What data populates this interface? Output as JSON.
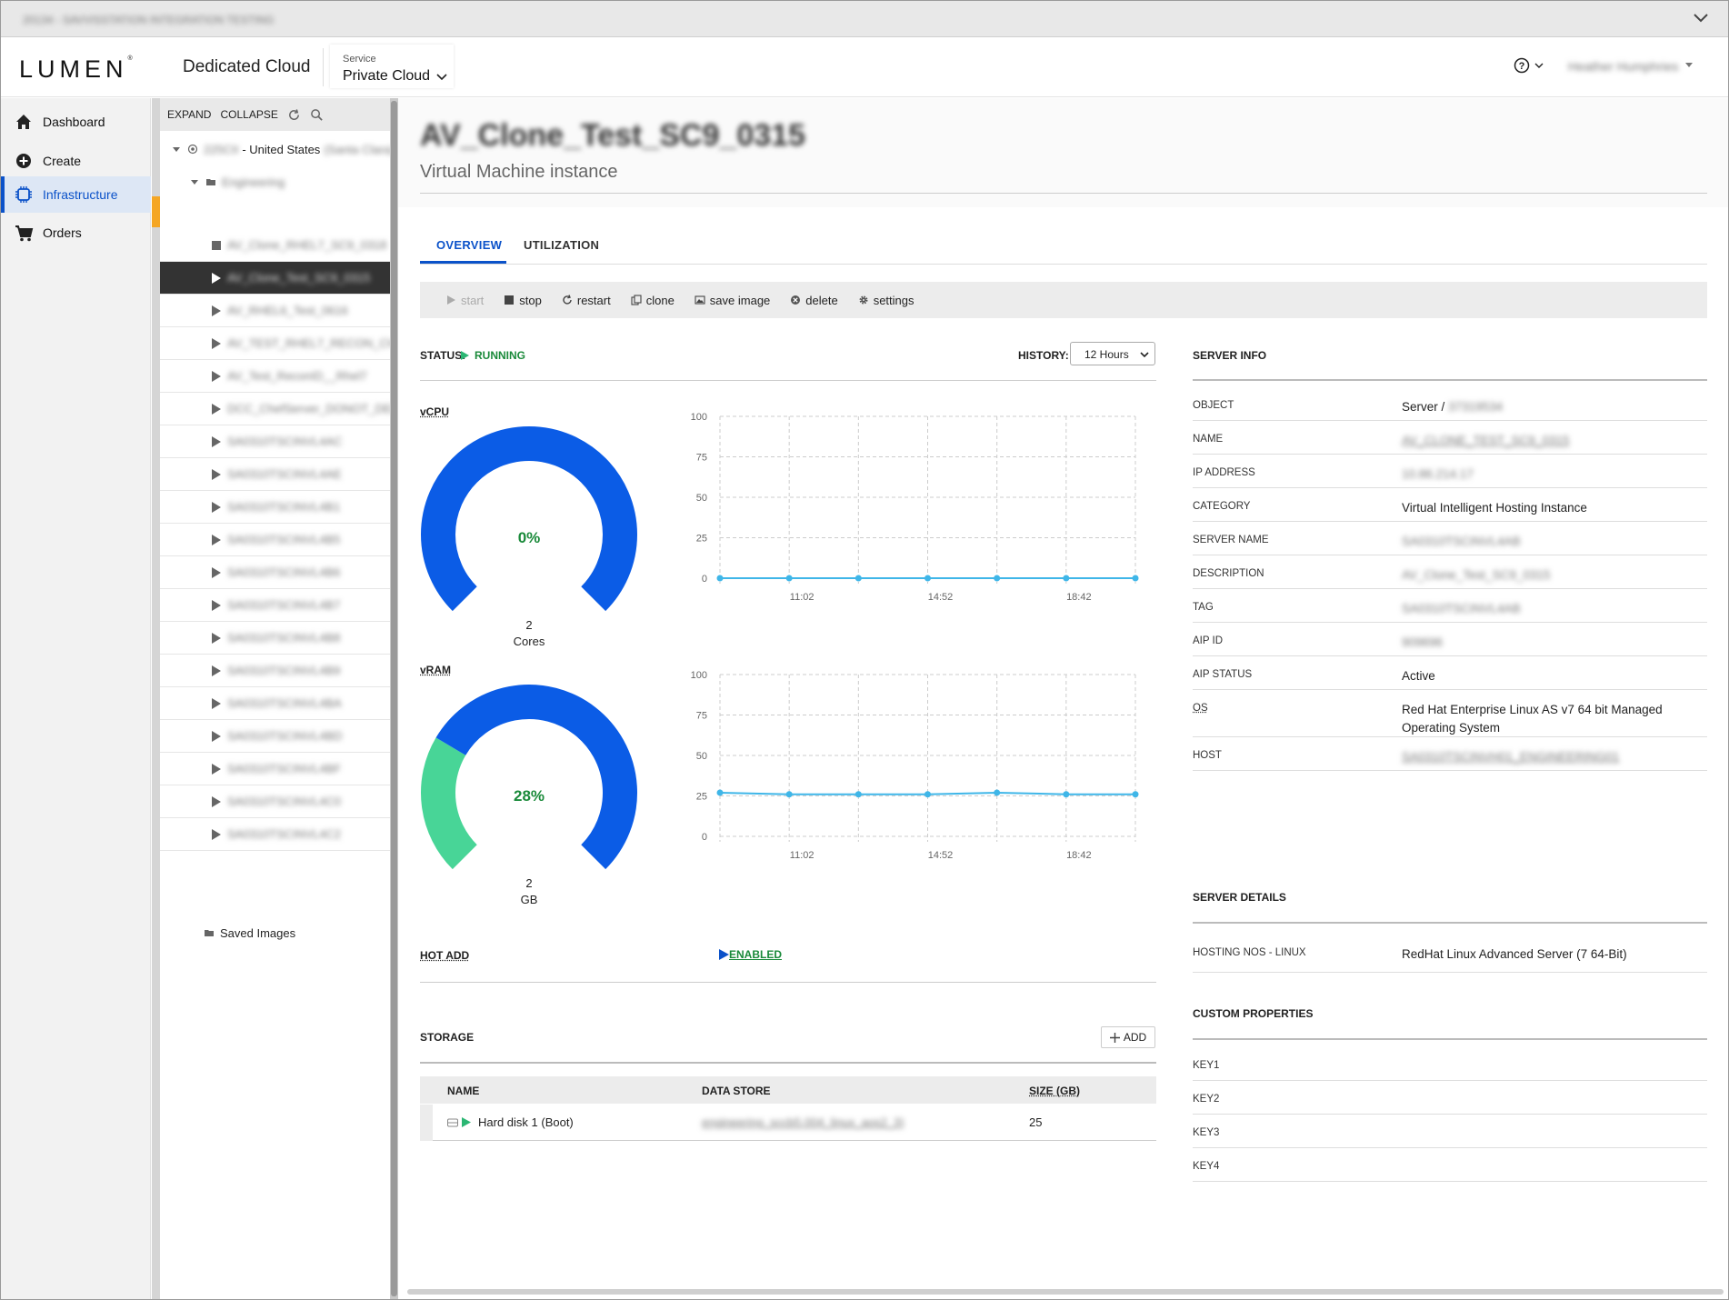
{
  "window": {
    "title": "20134 - SAVVISSTATION INTEGRATION TESTING"
  },
  "header": {
    "logo": "LUMEN",
    "app_title": "Dedicated Cloud",
    "service_label": "Service",
    "service_value": "Private Cloud",
    "user_name": "Heather Humphries"
  },
  "nav": {
    "items": [
      {
        "label": "Dashboard",
        "icon": "home-icon"
      },
      {
        "label": "Create",
        "icon": "plus-circle-icon"
      },
      {
        "label": "Infrastructure",
        "icon": "chip-icon",
        "active": true
      },
      {
        "label": "Orders",
        "icon": "cart-icon"
      }
    ]
  },
  "tree": {
    "expand": "EXPAND",
    "collapse": "COLLAPSE",
    "root_id": "225CII",
    "root_label": "- United States",
    "root_suffix": "(Santa Clara)",
    "group": "Engineering",
    "items": [
      "AV_Clone_RHEL7_SC9_0318",
      "AV_Clone_Test_SC9_0315",
      "AV_RHEL6_Test_0616",
      "AV_TEST_RHEL7_RECON_CHE",
      "AV_Test_ReconID__Rhel7",
      "DCC_ChefServer_DONOT_DEL",
      "SA0310TSCINVL4AC",
      "SA0310TSCINVL4AE",
      "SA0310TSCINVL4B1",
      "SA0310TSCINVL4B5",
      "SA0310TSCINVL4B6",
      "SA0310TSCINVL4B7",
      "SA0310TSCINVL4B8",
      "SA0310TSCINVL4B9",
      "SA0310TSCINVL4BA",
      "SA0310TSCINVL4BD",
      "SA0310TSCINVL4BF",
      "SA0310TSCINVL4C0",
      "SA0310TSCINVL4C2"
    ],
    "saved_images": "Saved Images"
  },
  "vm": {
    "name": "AV_Clone_Test_SC9_0315",
    "subtitle": "Virtual Machine instance"
  },
  "tabs": {
    "overview": "OVERVIEW",
    "utilization": "UTILIZATION"
  },
  "actions": {
    "start": "start",
    "stop": "stop",
    "restart": "restart",
    "clone": "clone",
    "save_image": "save image",
    "delete": "delete",
    "settings": "settings"
  },
  "status": {
    "label": "STATUS:",
    "value": "RUNNING"
  },
  "history": {
    "label": "HISTORY:",
    "value": "12 Hours"
  },
  "vcpu": {
    "label": "vCPU",
    "percent": "0%",
    "count": "2",
    "unit": "Cores",
    "fraction": 0.0
  },
  "vram": {
    "label": "vRAM",
    "percent": "28%",
    "count": "2",
    "unit": "GB",
    "fraction": 0.28
  },
  "chart_data": [
    {
      "type": "line",
      "name": "vcpu-chart",
      "x": [
        "",
        "11:02",
        "",
        "14:52",
        "",
        "18:42",
        ""
      ],
      "values": [
        0,
        0,
        0,
        0,
        0,
        0,
        0
      ],
      "yticks": [
        "100",
        "75",
        "50",
        "25",
        "0"
      ],
      "ylim": [
        0,
        100
      ],
      "grid": true,
      "color": "#3fb6e8"
    },
    {
      "type": "line",
      "name": "vram-chart",
      "x": [
        "",
        "11:02",
        "",
        "14:52",
        "",
        "18:42",
        ""
      ],
      "values": [
        27,
        26,
        26,
        26,
        27,
        26,
        26
      ],
      "yticks": [
        "100",
        "75",
        "50",
        "25",
        "0"
      ],
      "ylim": [
        0,
        100
      ],
      "grid": true,
      "color": "#3fb6e8"
    }
  ],
  "hot_add": {
    "label": "HOT ADD",
    "value": "ENABLED"
  },
  "storage": {
    "label": "STORAGE",
    "add": "ADD",
    "columns": {
      "name": "NAME",
      "datastore": "DATA STORE",
      "size": "SIZE (GB)"
    },
    "rows": [
      {
        "name": "Hard disk 1 (Boot)",
        "datastore": "engineering_sccb5.004_linux_aos2_3)",
        "size": "25"
      }
    ]
  },
  "server_info": {
    "title": "SERVER INFO",
    "rows": [
      {
        "key": "OBJECT",
        "value": "Server / ",
        "value_blur": "37319534"
      },
      {
        "key": "NAME",
        "value": "",
        "value_blur": "AV_CLONE_TEST_SC9_0315"
      },
      {
        "key": "IP ADDRESS",
        "value": "",
        "value_blur": "10.86.214.17"
      },
      {
        "key": "CATEGORY",
        "value": "Virtual Intelligent Hosting Instance",
        "value_blur": ""
      },
      {
        "key": "SERVER NAME",
        "value": "",
        "value_blur": "SA0310TSCINVL4AB"
      },
      {
        "key": "DESCRIPTION",
        "value": "",
        "value_blur": "AV_Clone_Test_SC9_0315"
      },
      {
        "key": "TAG",
        "value": "",
        "value_blur": "SA0310TSCINVL4AB"
      },
      {
        "key": "AIP ID",
        "value": "",
        "value_blur": "909696"
      },
      {
        "key": "AIP STATUS",
        "value": "Active",
        "value_blur": ""
      },
      {
        "key": "OS",
        "value": "Red Hat Enterprise Linux AS v7 64 bit Managed Operating System",
        "value_blur": ""
      },
      {
        "key": "HOST",
        "value": "",
        "value_blur": "SA0310TSCINVH01_ENGINEERING01"
      }
    ],
    "details_title": "SERVER DETAILS",
    "details": [
      {
        "key": "HOSTING NOS - LINUX",
        "value": "RedHat Linux Advanced Server (7 64-Bit)"
      }
    ],
    "custom_title": "CUSTOM PROPERTIES",
    "custom": [
      {
        "key": "KEY1",
        "value": ""
      },
      {
        "key": "KEY2",
        "value": ""
      },
      {
        "key": "KEY3",
        "value": ""
      },
      {
        "key": "KEY4",
        "value": ""
      }
    ]
  }
}
